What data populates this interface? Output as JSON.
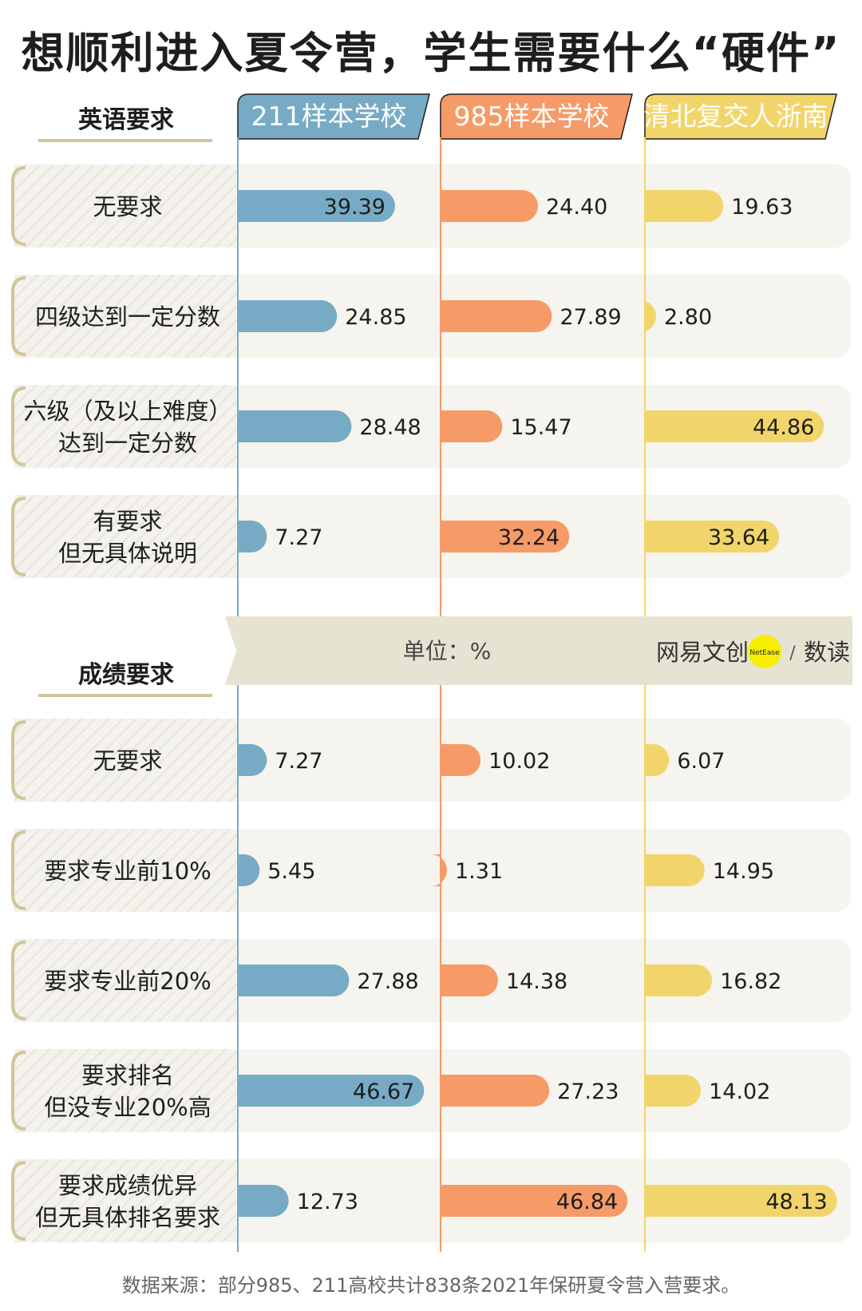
{
  "title": "想顺利进入夏令营，学生需要什么“硬件”",
  "unit_label": "单位：%",
  "brand": {
    "left": "网易文创",
    "circle": "NetEase",
    "slash": "/",
    "right": "数读"
  },
  "source": "数据来源：部分985、211高校共计838条2021年保研夏令营入营要求。",
  "colors": {
    "s211": "#77abc5",
    "s985": "#f69a67",
    "s_elite": "#f2d56a",
    "row_bg": "#f6f4ee",
    "header_underline": "#cfc69a",
    "band": "#e6e3d2",
    "logo_yellow": "#f5ee00"
  },
  "chart_data": {
    "type": "bar",
    "unit": "%",
    "series": [
      {
        "name": "211样本学校"
      },
      {
        "name": "985样本学校"
      },
      {
        "name": "清北复交人浙南"
      }
    ],
    "groups": [
      {
        "name": "英语要求",
        "rows": [
          {
            "label": [
              "无要求"
            ],
            "values": [
              39.39,
              24.4,
              19.63
            ]
          },
          {
            "label": [
              "四级达到一定分数"
            ],
            "values": [
              24.85,
              27.89,
              2.8
            ]
          },
          {
            "label": [
              "六级（及以上难度）",
              "达到一定分数"
            ],
            "values": [
              28.48,
              15.47,
              44.86
            ]
          },
          {
            "label": [
              "有要求",
              "但无具体说明"
            ],
            "values": [
              7.27,
              32.24,
              33.64
            ]
          }
        ]
      },
      {
        "name": "成绩要求",
        "rows": [
          {
            "label": [
              "无要求"
            ],
            "values": [
              7.27,
              10.02,
              6.07
            ]
          },
          {
            "label": [
              "要求专业前10%"
            ],
            "values": [
              5.45,
              1.31,
              14.95
            ]
          },
          {
            "label": [
              "要求专业前20%"
            ],
            "values": [
              27.88,
              14.38,
              16.82
            ]
          },
          {
            "label": [
              "要求排名",
              "但没专业20%高"
            ],
            "values": [
              46.67,
              27.23,
              14.02
            ]
          },
          {
            "label": [
              "要求成绩优异",
              "但无具体排名要求"
            ],
            "values": [
              12.73,
              46.84,
              48.13
            ]
          }
        ]
      }
    ]
  }
}
